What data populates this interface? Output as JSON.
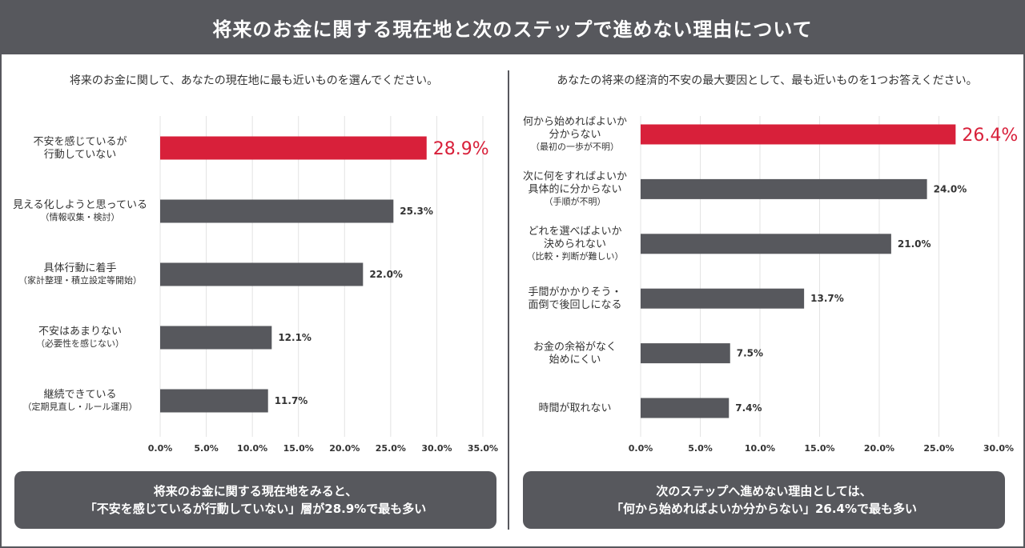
{
  "title": "将来のお金に関する現在地と次のステップで進めない理由について",
  "colors": {
    "highlight": "#d8203a",
    "bar": "#57585d",
    "grid": "#e3e3e3"
  },
  "left": {
    "question": "将来のお金に関して、あなたの現在地に最も近いものを選んでください。",
    "summary_line1": "将来のお金に関する現在地をみると、",
    "summary_line2": "「不安を感じているが行動していない」層が28.9%で最も多い"
  },
  "right": {
    "question": "あなたの将来の経済的不安の最大要因として、最も近いものを1つお答えください。",
    "summary_line1": "次のステップへ進めない理由としては、",
    "summary_line2": "「何から始めればよいか分からない」26.4%で最も多い"
  },
  "chart_data": [
    {
      "type": "bar",
      "orientation": "horizontal",
      "title": "将来のお金に関して、あなたの現在地に最も近いものを選んでください。",
      "categories": [
        {
          "lines": [
            "不安を感じているが",
            "行動していない"
          ],
          "sub": ""
        },
        {
          "lines": [
            "見える化しようと思っている"
          ],
          "sub": "（情報収集・検討）"
        },
        {
          "lines": [
            "具体行動に着手"
          ],
          "sub": "（家計整理・積立設定等開始）"
        },
        {
          "lines": [
            "不安はあまりない"
          ],
          "sub": "（必要性を感じない）"
        },
        {
          "lines": [
            "継続できている"
          ],
          "sub": "（定期見直し・ルール運用）"
        }
      ],
      "values": [
        28.9,
        25.3,
        22.0,
        12.1,
        11.7
      ],
      "value_labels": [
        "28.9%",
        "25.3%",
        "22.0%",
        "12.1%",
        "11.7%"
      ],
      "highlight_index": 0,
      "xlim": [
        0,
        35
      ],
      "ticks": [
        "0.0%",
        "5.0%",
        "10.0%",
        "15.0%",
        "20.0%",
        "25.0%",
        "30.0%",
        "35.0%"
      ],
      "tick_values": [
        0,
        5,
        10,
        15,
        20,
        25,
        30,
        35
      ],
      "grid": true
    },
    {
      "type": "bar",
      "orientation": "horizontal",
      "title": "あなたの将来の経済的不安の最大要因として、最も近いものを1つお答えください。",
      "categories": [
        {
          "lines": [
            "何から始めればよいか",
            "分からない"
          ],
          "sub": "（最初の一歩が不明）"
        },
        {
          "lines": [
            "次に何をすればよいか",
            "具体的に分からない"
          ],
          "sub": "（手順が不明）"
        },
        {
          "lines": [
            "どれを選べばよいか",
            "決められない"
          ],
          "sub": "（比較・判断が難しい）"
        },
        {
          "lines": [
            "手間がかかりそう・",
            "面倒で後回しになる"
          ],
          "sub": ""
        },
        {
          "lines": [
            "お金の余裕がなく",
            "始めにくい"
          ],
          "sub": ""
        },
        {
          "lines": [
            "時間が取れない"
          ],
          "sub": ""
        }
      ],
      "values": [
        26.4,
        24.0,
        21.0,
        13.7,
        7.5,
        7.4
      ],
      "value_labels": [
        "26.4%",
        "24.0%",
        "21.0%",
        "13.7%",
        "7.5%",
        "7.4%"
      ],
      "highlight_index": 0,
      "xlim": [
        0,
        30
      ],
      "ticks": [
        "0.0%",
        "5.0%",
        "10.0%",
        "15.0%",
        "20.0%",
        "25.0%",
        "30.0%"
      ],
      "tick_values": [
        0,
        5,
        10,
        15,
        20,
        25,
        30
      ],
      "grid": true
    }
  ]
}
